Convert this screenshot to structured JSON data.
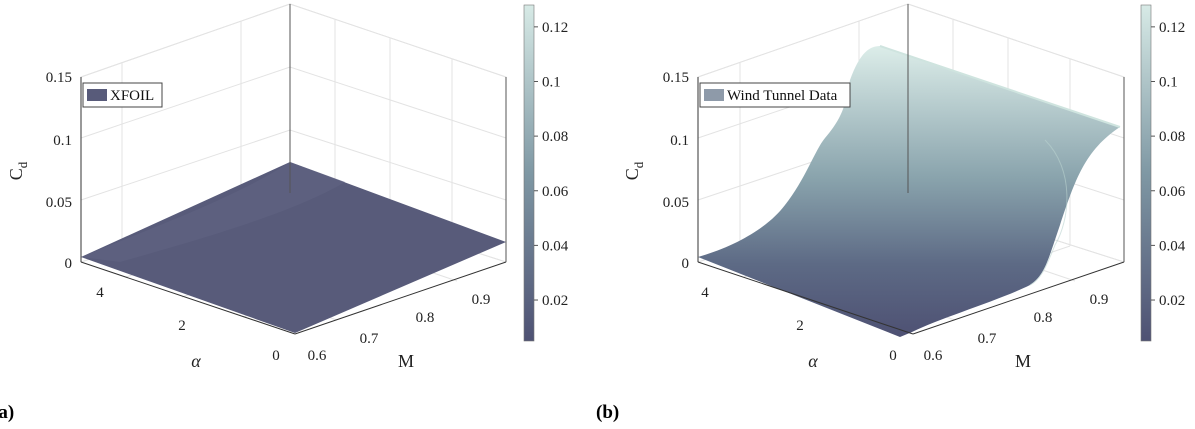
{
  "chart_data": [
    {
      "type": "surface",
      "panel_label": "(a)",
      "legend": "XFOIL",
      "zlabel": "C",
      "zlabel_sub": "d",
      "xlabel": "α",
      "ylabel": "M",
      "alpha_ticks": [
        4,
        2,
        0
      ],
      "mach_ticks": [
        0.6,
        0.7,
        0.8,
        0.9
      ],
      "z_ticks": [
        0,
        0.05,
        0.1,
        0.15
      ],
      "zlim": [
        0,
        0.15
      ],
      "alpha_range": [
        0,
        5
      ],
      "mach_range": [
        0.58,
        0.96
      ],
      "corner_values": {
        "alpha5_mach058": 0.008,
        "alpha0_mach058": 0.004,
        "alpha5_mach096": 0.045,
        "alpha0_mach096": 0.018
      },
      "colorbar_ticks": [
        0.02,
        0.04,
        0.06,
        0.08,
        0.1,
        0.12
      ],
      "colorbar_range": [
        0.005,
        0.128
      ],
      "surface_color": "#585b7a"
    },
    {
      "type": "surface",
      "panel_label": "(b)",
      "legend": "Wind Tunnel Data",
      "zlabel": "C",
      "zlabel_sub": "d",
      "xlabel": "α",
      "ylabel": "M",
      "alpha_ticks": [
        4,
        2,
        0
      ],
      "mach_ticks": [
        0.6,
        0.7,
        0.8,
        0.9
      ],
      "z_ticks": [
        0,
        0.05,
        0.1,
        0.15
      ],
      "zlim": [
        0,
        0.15
      ],
      "alpha_range": [
        0,
        5
      ],
      "mach_range": [
        0.58,
        0.96
      ],
      "drag_rise": {
        "low_cd": 0.008,
        "high_cd_alpha5": 0.125,
        "high_cd_alpha0": 0.118,
        "mach_at_alpha5": 0.7,
        "mach_at_alpha0": 0.84
      },
      "colorbar_ticks": [
        0.02,
        0.04,
        0.06,
        0.08,
        0.1,
        0.12
      ],
      "colorbar_range": [
        0.005,
        0.128
      ],
      "surface_color_low": "#4e5173",
      "surface_color_high": "#d7eae6"
    }
  ]
}
